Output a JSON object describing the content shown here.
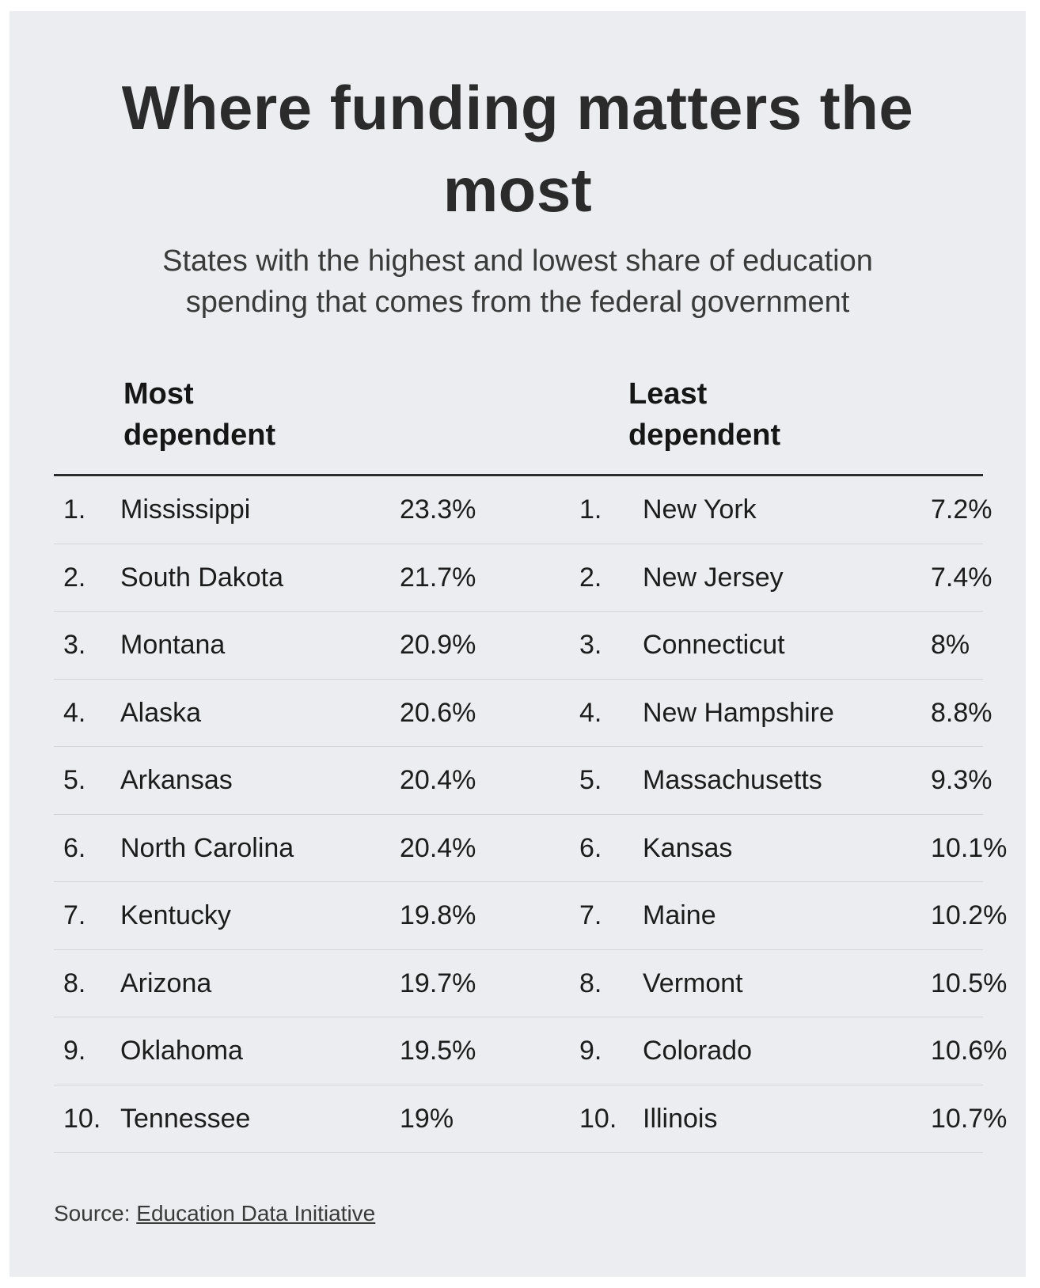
{
  "title_line1": "Where funding matters the",
  "title_line2": "most",
  "subtitle_line1": "States with the highest and lowest share of education",
  "subtitle_line2": "spending that comes from the federal government",
  "source_label": "Source:",
  "source_link": "Education Data Initiative",
  "chart_data": {
    "type": "table",
    "tables": [
      {
        "header_line1": "Most",
        "header_line2": "dependent",
        "rows": [
          {
            "rank": "1.",
            "state": "Mississippi",
            "value": "23.3%"
          },
          {
            "rank": "2.",
            "state": "South Dakota",
            "value": "21.7%"
          },
          {
            "rank": "3.",
            "state": "Montana",
            "value": "20.9%"
          },
          {
            "rank": "4.",
            "state": "Alaska",
            "value": "20.6%"
          },
          {
            "rank": "5.",
            "state": "Arkansas",
            "value": "20.4%"
          },
          {
            "rank": "6.",
            "state": "North Carolina",
            "value": "20.4%"
          },
          {
            "rank": "7.",
            "state": "Kentucky",
            "value": "19.8%"
          },
          {
            "rank": "8.",
            "state": "Arizona",
            "value": "19.7%"
          },
          {
            "rank": "9.",
            "state": "Oklahoma",
            "value": "19.5%"
          },
          {
            "rank": "10.",
            "state": "Tennessee",
            "value": "19%"
          }
        ]
      },
      {
        "header_line1": "Least",
        "header_line2": "dependent",
        "rows": [
          {
            "rank": "1.",
            "state": "New York",
            "value": "7.2%"
          },
          {
            "rank": "2.",
            "state": "New Jersey",
            "value": "7.4%"
          },
          {
            "rank": "3.",
            "state": "Connecticut",
            "value": "8%"
          },
          {
            "rank": "4.",
            "state": "New Hampshire",
            "value": "8.8%"
          },
          {
            "rank": "5.",
            "state": "Massachusetts",
            "value": "9.3%"
          },
          {
            "rank": "6.",
            "state": "Kansas",
            "value": "10.1%"
          },
          {
            "rank": "7.",
            "state": "Maine",
            "value": "10.2%"
          },
          {
            "rank": "8.",
            "state": "Vermont",
            "value": "10.5%"
          },
          {
            "rank": "9.",
            "state": "Colorado",
            "value": "10.6%"
          },
          {
            "rank": "10.",
            "state": "Illinois",
            "value": "10.7%"
          }
        ]
      }
    ]
  }
}
